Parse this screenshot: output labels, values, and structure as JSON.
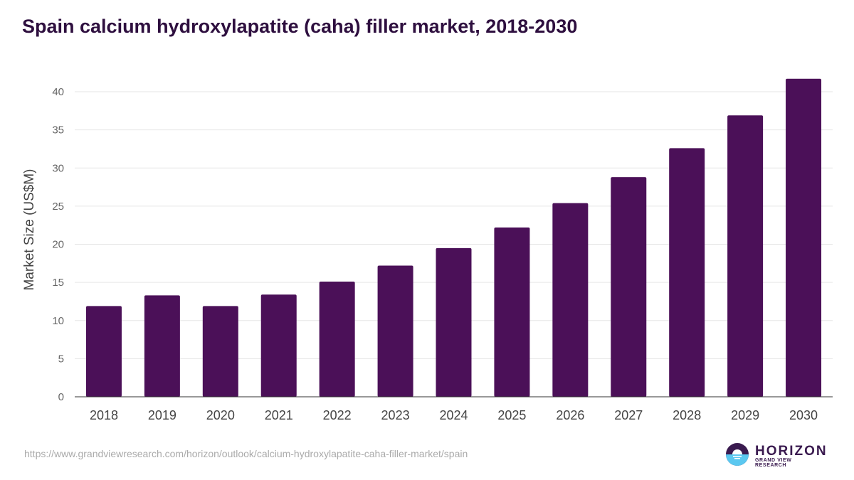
{
  "chart_data": {
    "type": "bar",
    "title": "Spain calcium hydroxylapatite (caha) filler market, 2018-2030",
    "xlabel": "",
    "ylabel": "Market Size (US$M)",
    "categories": [
      "2018",
      "2019",
      "2020",
      "2021",
      "2022",
      "2023",
      "2024",
      "2025",
      "2026",
      "2027",
      "2028",
      "2029",
      "2030"
    ],
    "values": [
      11.9,
      13.3,
      11.9,
      13.4,
      15.1,
      17.2,
      19.5,
      22.2,
      25.4,
      28.8,
      32.6,
      36.9,
      41.7
    ],
    "ylim": [
      0,
      40
    ],
    "yticks": [
      0,
      5,
      10,
      15,
      20,
      25,
      30,
      35,
      40
    ],
    "grid": true,
    "bar_color": "#4b1058"
  },
  "source_url": "https://www.grandviewresearch.com/horizon/outlook/calcium-hydroxylapatite-caha-filler-market/spain",
  "logo": {
    "name": "HORIZON",
    "sub": "GRAND VIEW RESEARCH"
  }
}
